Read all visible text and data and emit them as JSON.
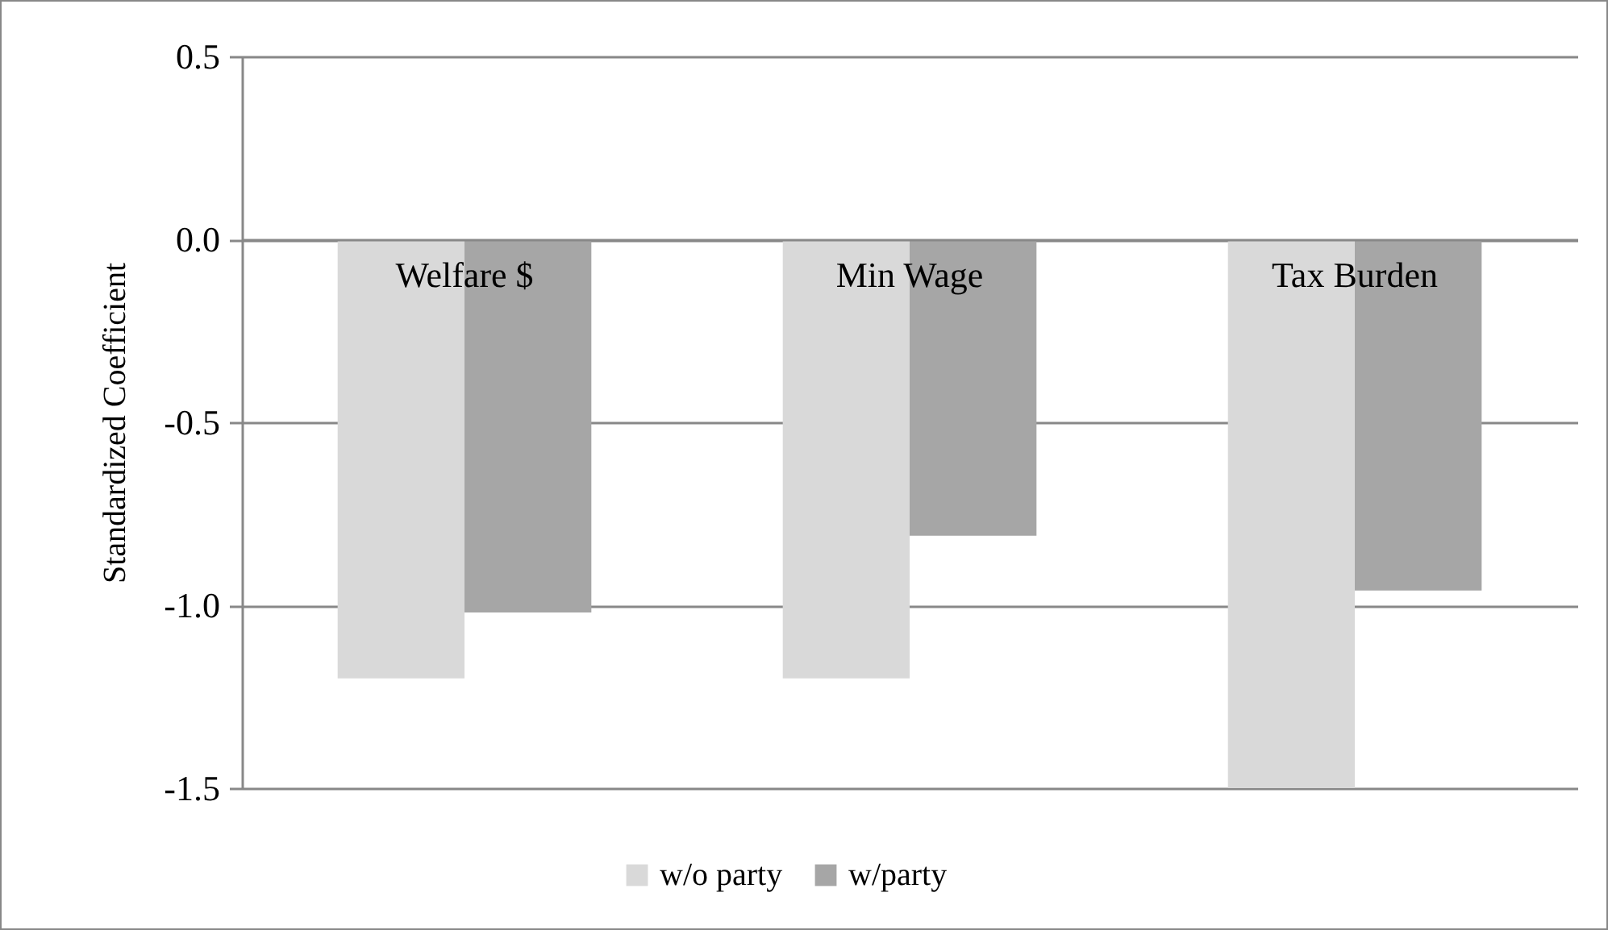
{
  "chart_data": {
    "type": "bar",
    "ylabel": "Standardized Coefficient",
    "categories": [
      "Welfare $",
      "Min Wage",
      "Tax Burden"
    ],
    "series": [
      {
        "name": "w/o party",
        "color": "#d9d9d9",
        "values": [
          -1.2,
          -1.2,
          -1.5
        ]
      },
      {
        "name": "w/party",
        "color": "#a6a6a6",
        "values": [
          -1.02,
          -0.81,
          -0.96
        ]
      }
    ],
    "ylim": [
      -1.5,
      0.5
    ],
    "yticks": [
      -1.5,
      {
        "value": -1,
        "label": "-1.0"
      },
      -0.5,
      {
        "value": 0,
        "label": "0.0"
      },
      0.5
    ],
    "grid": "y",
    "legend": "bottom"
  }
}
